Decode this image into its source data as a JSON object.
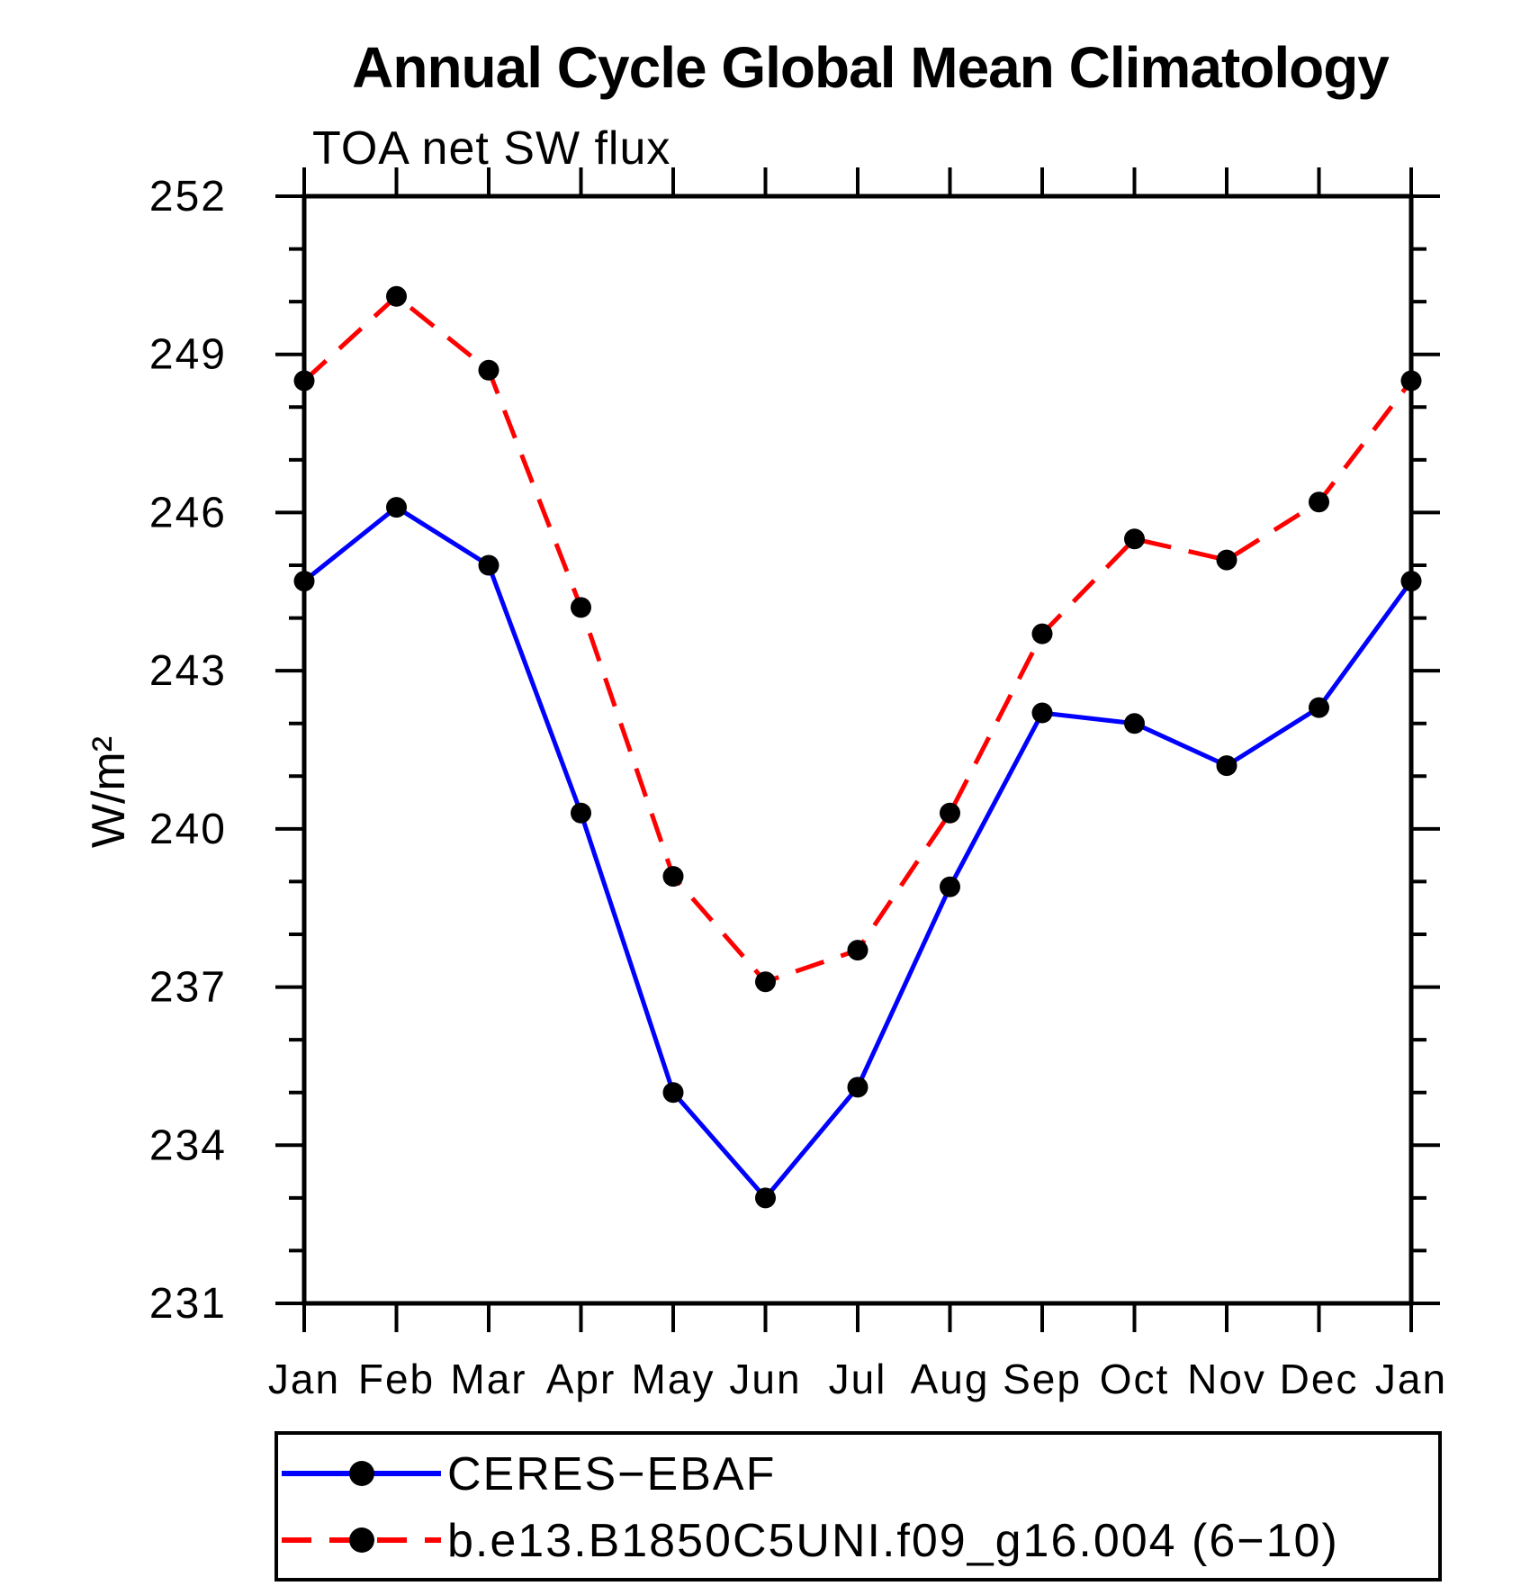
{
  "chart_data": {
    "type": "line",
    "title": "Annual Cycle Global Mean Climatology",
    "subtitle": "TOA net SW flux",
    "ylabel": "W/m²",
    "x_categories": [
      "Jan",
      "Feb",
      "Mar",
      "Apr",
      "May",
      "Jun",
      "Jul",
      "Aug",
      "Sep",
      "Oct",
      "Nov",
      "Dec",
      "Jan"
    ],
    "y_ticks": [
      252,
      249,
      246,
      243,
      240,
      237,
      234,
      231
    ],
    "ylim": [
      231,
      252
    ],
    "y_minor_step": 1,
    "grid": false,
    "legend_position": "bottom-box",
    "axis_color": "#000000",
    "marker_color": "#000000",
    "series": [
      {
        "name": "CERES−EBAF",
        "color": "#0000ff",
        "style": "solid",
        "marker": "circle",
        "values": [
          244.7,
          246.1,
          245.0,
          240.3,
          235.0,
          233.0,
          235.1,
          238.9,
          242.2,
          242.0,
          241.2,
          242.3,
          244.7
        ]
      },
      {
        "name": "b.e13.B1850C5UNI.f09_g16.004 (6−10)",
        "color": "#ff0000",
        "style": "dashed",
        "marker": "circle",
        "values": [
          248.5,
          250.1,
          248.7,
          244.2,
          239.1,
          237.1,
          237.7,
          240.3,
          243.7,
          245.5,
          245.1,
          246.2,
          248.5
        ]
      }
    ]
  }
}
